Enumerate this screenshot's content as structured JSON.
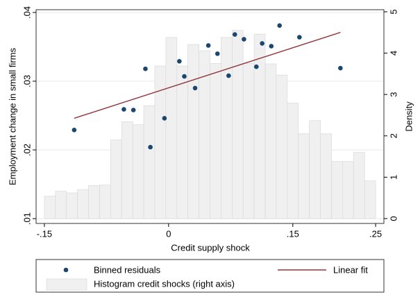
{
  "chart_data": {
    "type": "combo",
    "xlabel": "Credit supply shock",
    "ylabel": "Employment change in small firms",
    "y2label": "Density",
    "xlim": [
      -0.16,
      0.26
    ],
    "xticks": [
      {
        "value": -0.15,
        "label": "-.15"
      },
      0,
      {
        "value": 0.15,
        "label": ".15"
      },
      {
        "value": 0.25,
        "label": ".25"
      }
    ],
    "ylim": [
      0.0093,
      0.0404
    ],
    "yticks": [
      {
        "value": 0.01,
        "label": ".01"
      },
      {
        "value": 0.02,
        "label": ".02"
      },
      {
        "value": 0.03,
        "label": ".03"
      },
      {
        "value": 0.04,
        "label": ".04"
      }
    ],
    "y2lim": [
      -0.118,
      5.05
    ],
    "y2ticks": [
      0,
      1,
      2,
      3,
      4,
      5
    ],
    "grid": true,
    "legend": "bottom",
    "series": [
      {
        "name": "Histogram credit shocks (right axis)",
        "type": "histogram",
        "axis": "y2",
        "color": "#f0f0f0",
        "bins": [
          -0.15,
          -0.1367,
          -0.1233,
          -0.11,
          -0.0967,
          -0.0833,
          -0.07,
          -0.0567,
          -0.0433,
          -0.03,
          -0.0167,
          -0.0033,
          0.01,
          0.0233,
          0.0367,
          0.05,
          0.0633,
          0.0767,
          0.09,
          0.1033,
          0.1167,
          0.13,
          0.1433,
          0.1567,
          0.17,
          0.1833,
          0.1967,
          0.21,
          0.2233,
          0.2367,
          0.25
        ],
        "values": [
          0.54,
          0.66,
          0.62,
          0.7,
          0.8,
          0.81,
          1.9,
          2.34,
          2.27,
          2.73,
          3.69,
          4.38,
          3.69,
          4.21,
          4.06,
          3.75,
          4.38,
          4.55,
          3.75,
          4.46,
          3.74,
          3.47,
          2.79,
          2.05,
          2.37,
          2.05,
          1.38,
          1.38,
          1.6,
          0.91
        ]
      },
      {
        "name": "Binned residuals",
        "type": "scatter",
        "color": "#1a476f",
        "x": [
          -0.114,
          -0.054,
          -0.0425,
          -0.028,
          -0.022,
          -0.005,
          0.013,
          0.019,
          0.032,
          0.048,
          0.059,
          0.0725,
          0.08,
          0.091,
          0.106,
          0.113,
          0.124,
          0.134,
          0.158,
          0.2075
        ],
        "values": [
          0.0229,
          0.0259,
          0.0258,
          0.0318,
          0.0204,
          0.0246,
          0.0329,
          0.0307,
          0.029,
          0.0352,
          0.034,
          0.0308,
          0.0368,
          0.0361,
          0.0321,
          0.0355,
          0.0351,
          0.0381,
          0.0364,
          0.0319
        ]
      },
      {
        "name": "Linear fit",
        "type": "line",
        "color": "#90353b",
        "x": [
          -0.114,
          0.2075
        ],
        "values": [
          0.0246,
          0.0371
        ]
      }
    ]
  }
}
